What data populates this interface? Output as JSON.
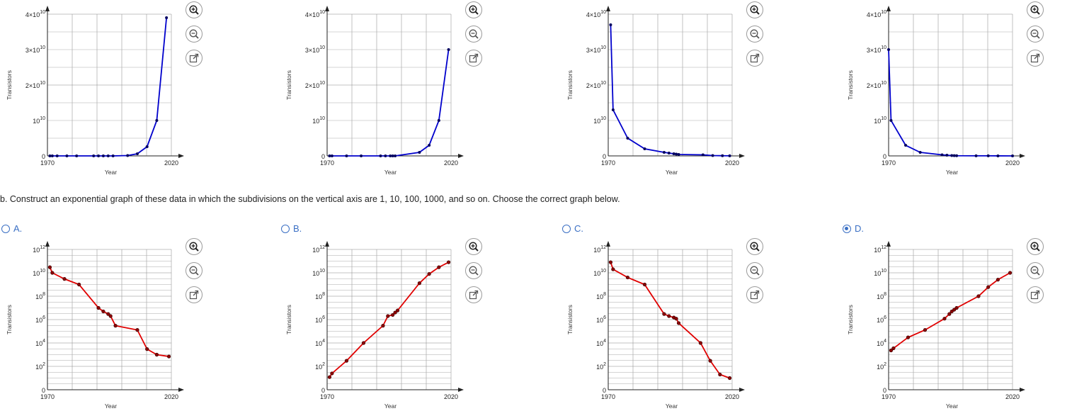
{
  "question": "b. Construct an exponential graph of these data in which the subdivisions on the vertical axis are 1, 10, 100, 1000, and so on. Choose the correct graph below.",
  "choices": [
    {
      "letter": "A.",
      "selected": false
    },
    {
      "letter": "B.",
      "selected": false
    },
    {
      "letter": "C.",
      "selected": false
    },
    {
      "letter": "D.",
      "selected": true
    }
  ],
  "zoom_icons": [
    "zoom-in-icon",
    "zoom-out-icon",
    "open-external-icon"
  ],
  "colors": {
    "linear_line": "#0000cc",
    "log_line": "#e00000",
    "marker": "#8b0000",
    "accent": "#3a6fc4"
  },
  "chart_data": [
    {
      "type": "line",
      "xlabel": "Year",
      "ylabel": "Transistors",
      "x_ticks": [
        "1970",
        "2020"
      ],
      "y_ticks": [
        "0",
        "10^10",
        "2×10^10",
        "3×10^10",
        "4×10^10"
      ],
      "ylim": [
        0,
        40000000000.0
      ],
      "xlim": [
        1970,
        2021
      ],
      "series": [
        {
          "x": [
            1971,
            1972,
            1974,
            1978,
            1982,
            1989,
            1991,
            1993,
            1995,
            1997,
            2003,
            2007,
            2011,
            2015,
            2019
          ],
          "y": [
            2300.0,
            3500.0,
            6000.0,
            30000.0,
            130000.0,
            1200000.0,
            1600000.0,
            3100000.0,
            5500000.0,
            7500000.0,
            100000000.0,
            600000000.0,
            2600000000.0,
            10000000000.0,
            39000000000.0
          ]
        }
      ]
    },
    {
      "type": "line",
      "xlabel": "Year",
      "ylabel": "Transistors",
      "x_ticks": [
        "1970",
        "2020"
      ],
      "y_ticks": [
        "0",
        "10^10",
        "2×10^10",
        "3×10^10",
        "4×10^10"
      ],
      "ylim": [
        0,
        40000000000.0
      ],
      "xlim": [
        1970,
        2021
      ],
      "series": [
        {
          "x": [
            1971,
            1972,
            1978,
            1984,
            1992,
            1994,
            1996,
            1997,
            1998,
            2008,
            2012,
            2016,
            2020
          ],
          "y": [
            0,
            0,
            0,
            0,
            0,
            0,
            0,
            0,
            0,
            1000000000.0,
            3000000000.0,
            10000000000.0,
            30000000000.0
          ]
        }
      ]
    },
    {
      "type": "line",
      "xlabel": "Year",
      "ylabel": "Transistors",
      "x_ticks": [
        "1970",
        "2020"
      ],
      "y_ticks": [
        "0",
        "10^10",
        "2×10^10",
        "3×10^10",
        "4×10^10"
      ],
      "ylim": [
        0,
        40000000000.0
      ],
      "xlim": [
        1970,
        2021
      ],
      "series": [
        {
          "x": [
            1971,
            1972,
            1978,
            1985,
            1993,
            1995,
            1997,
            1998,
            1999,
            2009,
            2013,
            2017,
            2020
          ],
          "y": [
            37000000000.0,
            13000000000.0,
            5000000000.0,
            2000000000.0,
            1000000000.0,
            800000000.0,
            600000000.0,
            500000000.0,
            400000000.0,
            300000000.0,
            100000000.0,
            50000000.0,
            30000000.0
          ]
        }
      ]
    },
    {
      "type": "line",
      "xlabel": "Year",
      "ylabel": "Transistors",
      "x_ticks": [
        "1970",
        "2020"
      ],
      "y_ticks": [
        "0",
        "10^10",
        "2×10^10",
        "3×10^10",
        "4×10^10"
      ],
      "ylim": [
        0,
        40000000000.0
      ],
      "xlim": [
        1970,
        2021
      ],
      "series": [
        {
          "x": [
            1970,
            1971,
            1977,
            1983,
            1992,
            1994,
            1996,
            1997,
            1998,
            2006,
            2011,
            2015,
            2021
          ],
          "y": [
            30000000000.0,
            10000000000.0,
            3000000000.0,
            1000000000.0,
            300000000.0,
            200000000.0,
            100000000.0,
            70000000.0,
            50000000.0,
            30000000.0,
            20000000.0,
            10000000.0,
            5000000.0
          ]
        }
      ]
    },
    {
      "type": "line",
      "xlabel": "Year",
      "ylabel": "Transistors",
      "x_ticks": [
        "1970",
        "2020"
      ],
      "y_ticks": [
        "0",
        "10^2",
        "10^4",
        "10^6",
        "10^8",
        "10^10",
        "10^12"
      ],
      "yscale": "log",
      "ylim": [
        1,
        1000000000000.0
      ],
      "xlim": [
        1970,
        2021
      ],
      "series": [
        {
          "x": [
            1971,
            1972,
            1977,
            1983,
            1991,
            1993,
            1995,
            1996,
            1998,
            2007,
            2011,
            2015,
            2020
          ],
          "y": [
            30000000000.0,
            10000000000.0,
            3000000000.0,
            1000000000.0,
            10000000.0,
            5000000.0,
            3000000.0,
            2000000.0,
            300000.0,
            130000.0,
            3000.0,
            1000.0,
            700.0
          ]
        }
      ]
    },
    {
      "type": "line",
      "xlabel": "Year",
      "ylabel": "Transistors",
      "x_ticks": [
        "1970",
        "2020"
      ],
      "y_ticks": [
        "0",
        "10^2",
        "10^4",
        "10^6",
        "10^8",
        "10^10",
        "10^12"
      ],
      "yscale": "log",
      "ylim": [
        1,
        1000000000000.0
      ],
      "xlim": [
        1970,
        2021
      ],
      "series": [
        {
          "x": [
            1971,
            1972,
            1978,
            1985,
            1993,
            1995,
            1997,
            1998,
            1999,
            2008,
            2012,
            2016,
            2020
          ],
          "y": [
            12.0,
            25.0,
            300.0,
            10000.0,
            300000.0,
            2000000.0,
            2500000.0,
            4000000.0,
            6000000.0,
            1300000000.0,
            8000000000.0,
            30000000000.0,
            80000000000.0
          ]
        }
      ]
    },
    {
      "type": "line",
      "xlabel": "Year",
      "ylabel": "Transistors",
      "x_ticks": [
        "1970",
        "2020"
      ],
      "y_ticks": [
        "0",
        "10^2",
        "10^4",
        "10^6",
        "10^8",
        "10^10",
        "10^12"
      ],
      "yscale": "log",
      "ylim": [
        1,
        1000000000000.0
      ],
      "xlim": [
        1970,
        2021
      ],
      "series": [
        {
          "x": [
            1971,
            1972,
            1978,
            1985,
            1993,
            1995,
            1997,
            1998,
            1999,
            2008,
            2012,
            2016,
            2020
          ],
          "y": [
            80000000000.0,
            20000000000.0,
            4000000000.0,
            1000000000.0,
            3000000.0,
            2000000.0,
            1500000.0,
            1200000.0,
            500000.0,
            10000.0,
            300.0,
            20.0,
            10.0
          ]
        }
      ]
    },
    {
      "type": "line",
      "xlabel": "Year",
      "ylabel": "Transistors",
      "x_ticks": [
        "1970",
        "2020"
      ],
      "y_ticks": [
        "0",
        "10^2",
        "10^4",
        "10^6",
        "10^8",
        "10^10",
        "10^12"
      ],
      "yscale": "log",
      "ylim": [
        1,
        1000000000000.0
      ],
      "xlim": [
        1970,
        2021
      ],
      "series": [
        {
          "x": [
            1971,
            1972,
            1978,
            1985,
            1993,
            1995,
            1996,
            1997,
            1998,
            2007,
            2011,
            2015,
            2020
          ],
          "y": [
            2300.0,
            3500.0,
            30000.0,
            130000.0,
            1200000.0,
            3000000.0,
            5000000.0,
            7000000.0,
            10000000.0,
            100000000.0,
            600000000.0,
            2600000000.0,
            10000000000.0
          ]
        }
      ]
    }
  ]
}
